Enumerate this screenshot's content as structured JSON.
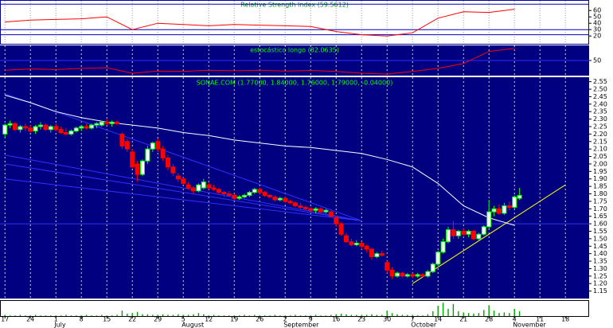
{
  "chart_data": {
    "type": "candlestick",
    "title": "SONAE.COM (1.77000, 1.84000, 1.76000, 1.79000, -0.04000)",
    "categories": [
      "17",
      null,
      null,
      null,
      null,
      "24",
      null,
      null,
      null,
      null,
      "1",
      null,
      null,
      null,
      null,
      "8",
      null,
      null,
      null,
      null,
      "15",
      null,
      null,
      null,
      null,
      "22",
      null,
      null,
      null,
      null,
      "29",
      null,
      null,
      null,
      null,
      "5",
      null,
      null,
      null,
      null,
      "12",
      null,
      null,
      null,
      null,
      "19",
      null,
      null,
      null,
      null,
      "26",
      null,
      null,
      null,
      null,
      "2",
      null,
      null,
      null,
      null,
      "9",
      null,
      null,
      null,
      null,
      "16",
      null,
      null,
      null,
      null,
      "23",
      null,
      null,
      null,
      null,
      "30",
      null,
      null,
      null,
      null,
      "7",
      null,
      null,
      null,
      null,
      "14",
      null,
      null,
      null,
      null,
      "21",
      null,
      null,
      null,
      null,
      "28",
      null,
      null,
      null,
      null,
      "4",
      null,
      null,
      null,
      null,
      "11",
      null,
      null,
      null,
      null,
      "18",
      null,
      null,
      null,
      null
    ],
    "months": [
      "July",
      "August",
      "September",
      "October",
      "November"
    ],
    "ohlc": [
      [
        2.2,
        2.27,
        2.18,
        2.26
      ],
      [
        2.26,
        2.29,
        2.24,
        2.27
      ],
      [
        2.27,
        2.28,
        2.22,
        2.23
      ],
      [
        2.23,
        2.26,
        2.21,
        2.25
      ],
      [
        2.25,
        2.27,
        2.22,
        2.24
      ],
      [
        2.24,
        2.26,
        2.21,
        2.22
      ],
      [
        2.22,
        2.26,
        2.2,
        2.25
      ],
      [
        2.25,
        2.28,
        2.23,
        2.26
      ],
      [
        2.26,
        2.27,
        2.22,
        2.23
      ],
      [
        2.23,
        2.26,
        2.21,
        2.25
      ],
      [
        2.25,
        2.27,
        2.22,
        2.23
      ],
      [
        2.23,
        2.25,
        2.2,
        2.21
      ],
      [
        2.21,
        2.24,
        2.19,
        2.2
      ],
      [
        2.2,
        2.23,
        2.19,
        2.22
      ],
      [
        2.22,
        2.25,
        2.21,
        2.24
      ],
      [
        2.24,
        2.26,
        2.22,
        2.25
      ],
      [
        2.25,
        2.27,
        2.23,
        2.24
      ],
      [
        2.24,
        2.27,
        2.23,
        2.26
      ],
      [
        2.26,
        2.28,
        2.24,
        2.27
      ],
      [
        2.26,
        2.29,
        2.25,
        2.28
      ],
      [
        2.28,
        2.3,
        2.26,
        2.27
      ],
      [
        2.27,
        2.29,
        2.25,
        2.28
      ],
      [
        2.28,
        2.29,
        2.26,
        2.27
      ],
      [
        2.2,
        2.21,
        2.1,
        2.12
      ],
      [
        2.15,
        2.17,
        2.08,
        2.1
      ],
      [
        2.08,
        2.1,
        1.97,
        1.98
      ],
      [
        2.0,
        2.02,
        1.88,
        1.93
      ],
      [
        1.93,
        2.03,
        1.92,
        2.02
      ],
      [
        2.02,
        2.12,
        2.0,
        2.1
      ],
      [
        2.1,
        2.15,
        2.08,
        2.14
      ],
      [
        2.15,
        2.17,
        2.08,
        2.1
      ],
      [
        2.1,
        2.12,
        2.02,
        2.04
      ],
      [
        2.04,
        2.06,
        1.96,
        1.98
      ],
      [
        1.98,
        2.0,
        1.92,
        1.94
      ],
      [
        1.92,
        1.94,
        1.88,
        1.9
      ],
      [
        1.9,
        1.91,
        1.86,
        1.87
      ],
      [
        1.86,
        1.88,
        1.83,
        1.84
      ],
      [
        1.84,
        1.85,
        1.8,
        1.82
      ],
      [
        1.82,
        1.87,
        1.81,
        1.86
      ],
      [
        1.84,
        1.9,
        1.83,
        1.88
      ],
      [
        1.86,
        1.88,
        1.83,
        1.84
      ],
      [
        1.84,
        1.86,
        1.82,
        1.83
      ],
      [
        1.83,
        1.84,
        1.8,
        1.81
      ],
      [
        1.81,
        1.82,
        1.78,
        1.8
      ],
      [
        1.8,
        1.82,
        1.78,
        1.79
      ],
      [
        1.79,
        1.8,
        1.76,
        1.77
      ],
      [
        1.77,
        1.79,
        1.76,
        1.78
      ],
      [
        1.78,
        1.8,
        1.77,
        1.79
      ],
      [
        1.79,
        1.82,
        1.78,
        1.81
      ],
      [
        1.81,
        1.84,
        1.8,
        1.83
      ],
      [
        1.83,
        1.84,
        1.8,
        1.81
      ],
      [
        1.81,
        1.82,
        1.78,
        1.79
      ],
      [
        1.79,
        1.8,
        1.77,
        1.78
      ],
      [
        1.78,
        1.79,
        1.75,
        1.76
      ],
      [
        1.76,
        1.78,
        1.75,
        1.77
      ],
      [
        1.77,
        1.78,
        1.74,
        1.75
      ],
      [
        1.75,
        1.76,
        1.73,
        1.74
      ],
      [
        1.74,
        1.75,
        1.71,
        1.72
      ],
      [
        1.72,
        1.74,
        1.7,
        1.71
      ],
      [
        1.71,
        1.72,
        1.69,
        1.7
      ],
      [
        1.7,
        1.71,
        1.68,
        1.69
      ],
      [
        1.69,
        1.71,
        1.67,
        1.7
      ],
      [
        1.7,
        1.71,
        1.67,
        1.68
      ],
      [
        1.68,
        1.7,
        1.67,
        1.69
      ],
      [
        1.68,
        1.69,
        1.64,
        1.65
      ],
      [
        1.64,
        1.65,
        1.58,
        1.6
      ],
      [
        1.6,
        1.61,
        1.52,
        1.53
      ],
      [
        1.52,
        1.54,
        1.47,
        1.48
      ],
      [
        1.48,
        1.5,
        1.45,
        1.46
      ],
      [
        1.46,
        1.49,
        1.45,
        1.47
      ],
      [
        1.47,
        1.48,
        1.43,
        1.45
      ],
      [
        1.45,
        1.46,
        1.41,
        1.43
      ],
      [
        1.43,
        1.44,
        1.36,
        1.38
      ],
      [
        1.38,
        1.41,
        1.37,
        1.4
      ],
      [
        1.4,
        1.42,
        1.38,
        1.39
      ],
      [
        1.34,
        1.35,
        1.27,
        1.29
      ],
      [
        1.29,
        1.31,
        1.23,
        1.25
      ],
      [
        1.25,
        1.28,
        1.24,
        1.27
      ],
      [
        1.27,
        1.28,
        1.24,
        1.25
      ],
      [
        1.25,
        1.27,
        1.24,
        1.26
      ],
      [
        1.26,
        1.27,
        1.24,
        1.25
      ],
      [
        1.25,
        1.27,
        1.24,
        1.26
      ],
      [
        1.26,
        1.27,
        1.24,
        1.25
      ],
      [
        1.25,
        1.29,
        1.24,
        1.28
      ],
      [
        1.28,
        1.34,
        1.27,
        1.33
      ],
      [
        1.33,
        1.42,
        1.32,
        1.41
      ],
      [
        1.41,
        1.5,
        1.4,
        1.48
      ],
      [
        1.48,
        1.58,
        1.47,
        1.56
      ],
      [
        1.56,
        1.62,
        1.5,
        1.52
      ],
      [
        1.52,
        1.56,
        1.5,
        1.55
      ],
      [
        1.55,
        1.57,
        1.52,
        1.53
      ],
      [
        1.53,
        1.56,
        1.51,
        1.55
      ],
      [
        1.55,
        1.56,
        1.49,
        1.5
      ],
      [
        1.5,
        1.54,
        1.49,
        1.53
      ],
      [
        1.53,
        1.59,
        1.52,
        1.58
      ],
      [
        1.58,
        1.76,
        1.57,
        1.68
      ],
      [
        1.68,
        1.72,
        1.65,
        1.7
      ],
      [
        1.7,
        1.73,
        1.66,
        1.67
      ],
      [
        1.67,
        1.74,
        1.66,
        1.72
      ],
      [
        1.72,
        1.75,
        1.69,
        1.71
      ],
      [
        1.71,
        1.79,
        1.7,
        1.78
      ],
      [
        1.77,
        1.84,
        1.76,
        1.79
      ],
      null,
      null,
      null,
      null,
      null,
      null,
      null,
      null,
      null,
      null,
      null,
      null,
      null
    ],
    "up_color": "#00ff00",
    "down_color": "#ff0000",
    "ylim": [
      1.1,
      2.58
    ],
    "yticks": [
      2.55,
      {
        "value": 2.5,
        "label": "2.50"
      },
      2.45,
      {
        "value": 2.4,
        "label": "2.40"
      },
      2.35,
      {
        "value": 2.3,
        "label": "2.30"
      },
      2.25,
      {
        "value": 2.2,
        "label": "2.20"
      },
      2.15,
      {
        "value": 2.1,
        "label": "2.10"
      },
      2.05,
      {
        "value": 2,
        "label": "2.00"
      },
      1.95,
      {
        "value": 1.9,
        "label": "1.90"
      },
      1.85,
      {
        "value": 1.8,
        "label": "1.80"
      },
      1.75,
      {
        "value": 1.7,
        "label": "1.70"
      },
      1.65,
      {
        "value": 1.6,
        "label": "1.60"
      },
      1.55,
      {
        "value": 1.5,
        "label": "1.50"
      },
      1.45,
      {
        "value": 1.4,
        "label": "1.40"
      },
      1.35,
      {
        "value": 1.3,
        "label": "1.30"
      },
      1.25,
      {
        "value": 1.2,
        "label": "1.20"
      },
      1.15
    ],
    "hlines": [
      1.6
    ],
    "grid": true,
    "moving_average": {
      "color": "#ffffff",
      "x": [
        "17",
        "24",
        "1",
        "8",
        "15",
        "22",
        "29",
        "5",
        "12",
        "19",
        "26",
        "2",
        "9",
        "16",
        "23",
        "30",
        "7",
        "14",
        "21",
        "28",
        "4"
      ],
      "values": [
        2.46,
        2.41,
        2.35,
        2.31,
        2.28,
        2.26,
        2.24,
        2.21,
        2.19,
        2.16,
        2.14,
        2.12,
        2.11,
        2.09,
        2.07,
        2.03,
        1.98,
        1.87,
        1.72,
        1.64,
        1.59
      ]
    },
    "trendlines": [
      {
        "color": "#3030ff",
        "x": [
          "17",
          "23"
        ],
        "values": [
          2.47,
          1.62
        ]
      },
      {
        "color": "#3030ff",
        "x": [
          "17",
          "23"
        ],
        "values": [
          2.06,
          1.62
        ]
      },
      {
        "color": "#3030ff",
        "x": [
          "17",
          "23"
        ],
        "values": [
          2.0,
          1.62
        ]
      },
      {
        "color": "#3030ff",
        "x": [
          "17",
          "23"
        ],
        "values": [
          1.9,
          1.62
        ]
      },
      {
        "color": "#ffff00",
        "x": [
          "7",
          "18"
        ],
        "values": [
          1.2,
          1.86
        ]
      }
    ],
    "volume": {
      "color": "#00a000",
      "ylim": [
        0,
        25
      ],
      "values": [
        2,
        1,
        1,
        2,
        1,
        1,
        2,
        1,
        1,
        1,
        1,
        1,
        2,
        1,
        1,
        1,
        2,
        1,
        1,
        2,
        1,
        1,
        2,
        9,
        4,
        5,
        7,
        3,
        3,
        2,
        2,
        3,
        2,
        2,
        3,
        2,
        2,
        3,
        5,
        3,
        1,
        2,
        1,
        1,
        1,
        1,
        1,
        2,
        1,
        2,
        1,
        1,
        1,
        2,
        1,
        1,
        1,
        2,
        1,
        1,
        1,
        2,
        1,
        1,
        2,
        3,
        4,
        3,
        2,
        2,
        2,
        2,
        3,
        2,
        2,
        9,
        5,
        3,
        2,
        2,
        2,
        1,
        1,
        3,
        8,
        17,
        22,
        12,
        20,
        8,
        6,
        5,
        4,
        5,
        10,
        18,
        9,
        5,
        6,
        5,
        12,
        8,
        null,
        null,
        null,
        null,
        null,
        null,
        null,
        null,
        null,
        null,
        null,
        null,
        null
      ]
    },
    "rsi": {
      "title": "Relative Strength Index (59.5612)",
      "color": "#ff0000",
      "ylim": [
        9,
        74
      ],
      "yticks": [
        20,
        30,
        40,
        50,
        60
      ],
      "hlines": [
        70,
        30,
        22
      ],
      "x": [
        "17",
        "24",
        "1",
        "8",
        "15",
        "22",
        "29",
        "5",
        "12",
        "19",
        "26",
        "2",
        "9",
        "16",
        "23",
        "30",
        "7",
        "14",
        "21",
        "28",
        "4"
      ],
      "values": [
        42,
        45,
        46,
        47,
        50,
        30,
        40,
        38,
        36,
        38,
        37,
        36,
        35,
        27,
        22,
        20,
        25,
        48,
        58,
        57,
        62
      ]
    },
    "stochastic": {
      "title": "estocástico longo (82.0635)",
      "color": "#ff0000",
      "ylim": [
        0,
        100
      ],
      "yticks": [
        50
      ],
      "hlines": [
        50
      ],
      "x": [
        "17",
        "24",
        "1",
        "8",
        "15",
        "22",
        "29",
        "5",
        "12",
        "19",
        "26",
        "2",
        "9",
        "16",
        "23",
        "30",
        "7",
        "14",
        "21",
        "28",
        "4"
      ],
      "values": [
        18,
        22,
        20,
        24,
        26,
        8,
        15,
        14,
        18,
        16,
        18,
        15,
        17,
        14,
        8,
        5,
        14,
        24,
        40,
        80,
        90
      ]
    }
  }
}
